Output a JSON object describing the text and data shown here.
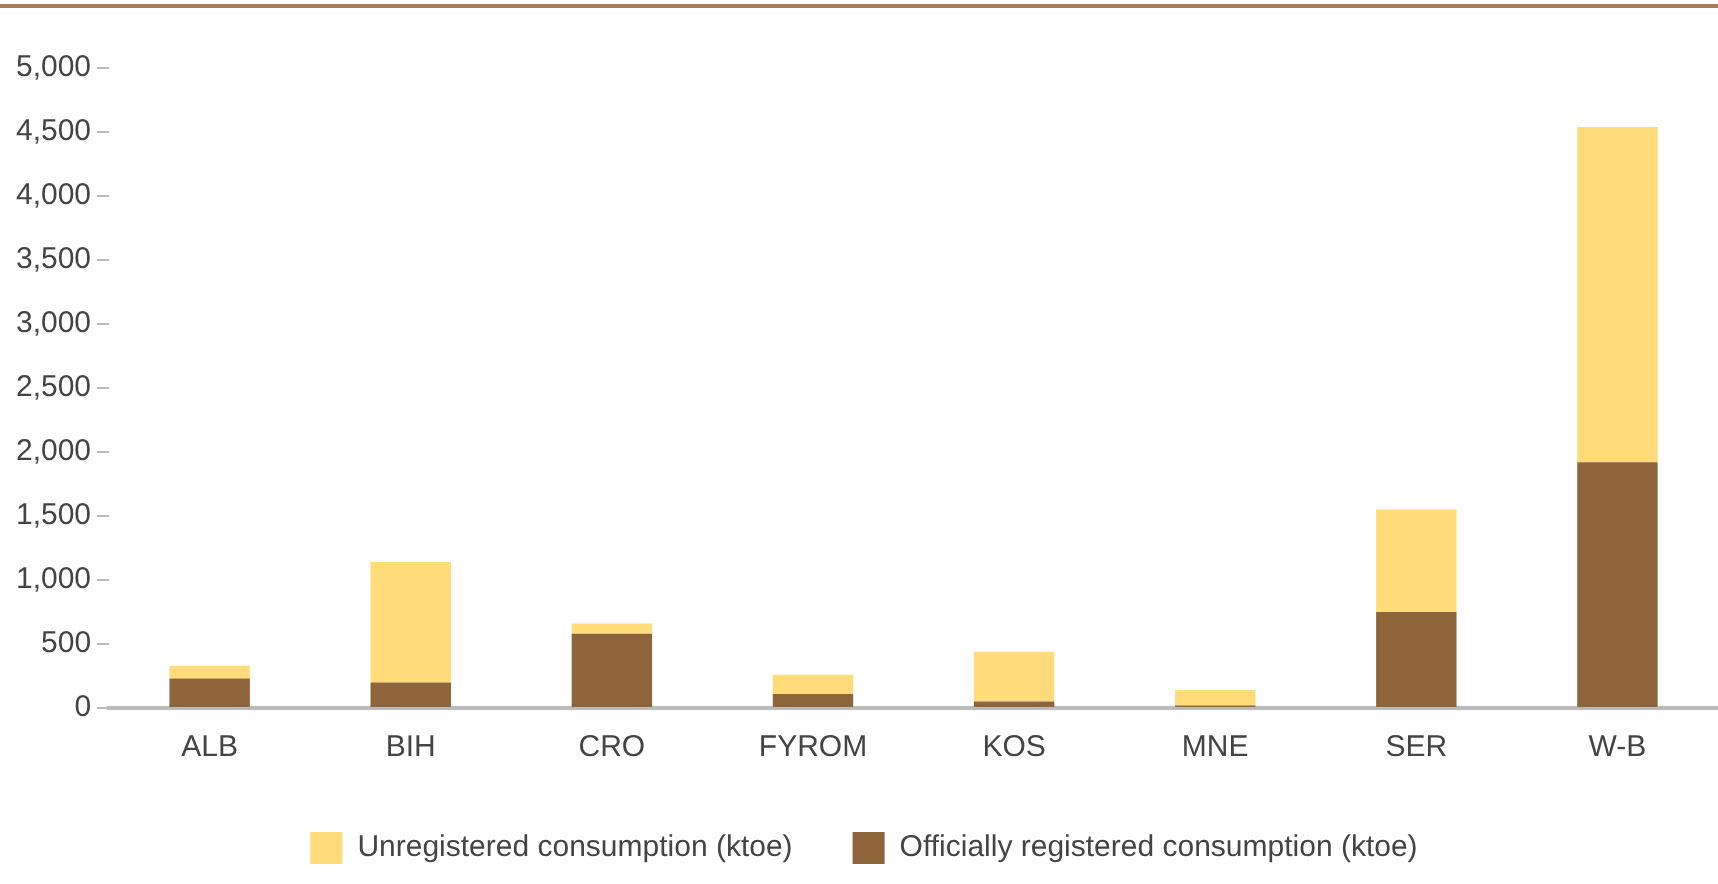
{
  "chart_data": {
    "type": "bar",
    "stacked": true,
    "categories": [
      "ALB",
      "BIH",
      "CRO",
      "FYROM",
      "KOS",
      "MNE",
      "SER",
      "W-B"
    ],
    "series": [
      {
        "name": "Officially registered consumption (ktoe)",
        "color": "#8e653a",
        "values": [
          230,
          200,
          580,
          110,
          50,
          20,
          750,
          1920
        ]
      },
      {
        "name": "Unregistered consumption (ktoe)",
        "color": "#ffdb7a",
        "values": [
          100,
          940,
          80,
          150,
          390,
          120,
          800,
          2620
        ]
      }
    ],
    "ylim": [
      0,
      5000
    ],
    "yticks": [
      0,
      500,
      {
        "value": 1000,
        "label": "1,000"
      },
      {
        "value": 1500,
        "label": "1,500"
      },
      {
        "value": 2000,
        "label": "2,000"
      },
      {
        "value": 2500,
        "label": "2,500"
      },
      {
        "value": 3000,
        "label": "3,000"
      },
      {
        "value": 3500,
        "label": "3,500"
      },
      {
        "value": 4000,
        "label": "4,000"
      },
      {
        "value": 4500,
        "label": "4,500"
      },
      {
        "value": 5000,
        "label": "5,000"
      }
    ],
    "grid": false,
    "legend": "bottom"
  }
}
